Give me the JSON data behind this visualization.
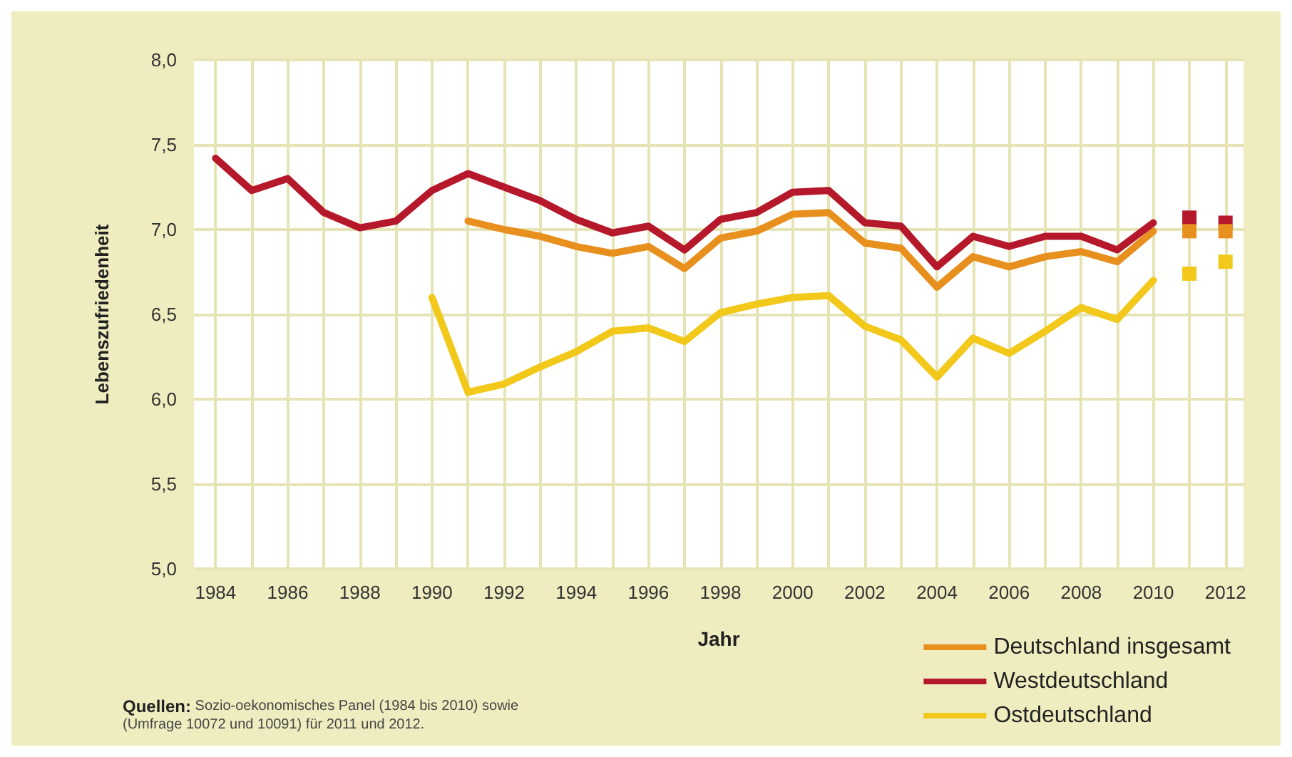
{
  "chart_data": {
    "type": "line",
    "xlabel": "Jahr",
    "ylabel": "Lebenszufriedenheit",
    "x": [
      1984,
      1985,
      1986,
      1987,
      1988,
      1989,
      1990,
      1991,
      1992,
      1993,
      1994,
      1995,
      1996,
      1997,
      1998,
      1999,
      2000,
      2001,
      2002,
      2003,
      2004,
      2005,
      2006,
      2007,
      2008,
      2009,
      2010,
      2011,
      2012
    ],
    "series": [
      {
        "name": "Deutschland insgesamt",
        "color": "#e8901e",
        "values": [
          null,
          null,
          null,
          null,
          null,
          null,
          null,
          7.05,
          7.0,
          6.96,
          6.9,
          6.86,
          6.9,
          6.77,
          6.95,
          6.99,
          7.09,
          7.1,
          6.92,
          6.89,
          6.66,
          6.84,
          6.78,
          6.84,
          6.87,
          6.81,
          6.99,
          null,
          null
        ]
      },
      {
        "name": "Westdeutschland",
        "color": "#b5182a",
        "values": [
          7.42,
          7.23,
          7.3,
          7.1,
          7.01,
          7.05,
          7.23,
          7.33,
          7.25,
          7.17,
          7.06,
          6.98,
          7.02,
          6.88,
          7.06,
          7.1,
          7.22,
          7.23,
          7.04,
          7.02,
          6.78,
          6.96,
          6.9,
          6.96,
          6.96,
          6.88,
          7.04,
          null,
          null
        ]
      },
      {
        "name": "Ostdeutschland",
        "color": "#f2c81a",
        "values": [
          null,
          null,
          null,
          null,
          null,
          null,
          6.6,
          6.04,
          6.09,
          6.19,
          6.28,
          6.4,
          6.42,
          6.34,
          6.51,
          6.56,
          6.6,
          6.61,
          6.43,
          6.35,
          6.13,
          6.36,
          6.27,
          6.4,
          6.54,
          6.47,
          6.7,
          null,
          null
        ]
      },
      {
        "type": "scatter",
        "marker": "square",
        "color": "#b5182a",
        "values": [
          null,
          null,
          null,
          null,
          null,
          null,
          null,
          null,
          null,
          null,
          null,
          null,
          null,
          null,
          null,
          null,
          null,
          null,
          null,
          null,
          null,
          null,
          null,
          null,
          null,
          null,
          null,
          7.07,
          7.04
        ]
      },
      {
        "type": "scatter",
        "marker": "square",
        "color": "#e8901e",
        "values": [
          null,
          null,
          null,
          null,
          null,
          null,
          null,
          null,
          null,
          null,
          null,
          null,
          null,
          null,
          null,
          null,
          null,
          null,
          null,
          null,
          null,
          null,
          null,
          null,
          null,
          null,
          null,
          6.99,
          6.99
        ]
      },
      {
        "type": "scatter",
        "marker": "square",
        "color": "#f2c81a",
        "values": [
          null,
          null,
          null,
          null,
          null,
          null,
          null,
          null,
          null,
          null,
          null,
          null,
          null,
          null,
          null,
          null,
          null,
          null,
          null,
          null,
          null,
          null,
          null,
          null,
          null,
          null,
          null,
          6.74,
          6.81
        ]
      }
    ],
    "xlim": [
      1983.4,
      2012.5
    ],
    "xticks": [
      1984,
      {
        "value": 1985,
        "label": null
      },
      1986,
      {
        "value": 1987,
        "label": null
      },
      1988,
      {
        "value": 1989,
        "label": null
      },
      1990,
      {
        "value": 1991,
        "label": null
      },
      1992,
      {
        "value": 1993,
        "label": null
      },
      1994,
      {
        "value": 1995,
        "label": null
      },
      1996,
      {
        "value": 1997,
        "label": null
      },
      1998,
      {
        "value": 1999,
        "label": null
      },
      2000,
      {
        "value": 2001,
        "label": null
      },
      2002,
      {
        "value": 2003,
        "label": null
      },
      2004,
      {
        "value": 2005,
        "label": null
      },
      2006,
      {
        "value": 2007,
        "label": null
      },
      2008,
      {
        "value": 2009,
        "label": null
      },
      2010,
      {
        "value": 2011,
        "label": null
      },
      2012
    ],
    "ylim": [
      5.0,
      8.0
    ],
    "yticks": [
      {
        "value": 5.0,
        "label": "5,0"
      },
      {
        "value": 5.5,
        "label": "5,5"
      },
      {
        "value": 6.0,
        "label": "6,0"
      },
      {
        "value": 6.5,
        "label": "6,5"
      },
      {
        "value": 7.0,
        "label": "7,0"
      },
      {
        "value": 7.5,
        "label": "7,5"
      },
      {
        "value": 8.0,
        "label": "8,0"
      }
    ],
    "grid": true,
    "legend": "bottom right",
    "marker": "none",
    "line_style": "solid",
    "annotations": [
      "Quellen: Sozio-oekonomisches Panel (1984 bis 2010) sowie (Umfrage 10072 und 10091) für 2011 und 2012."
    ]
  }
}
